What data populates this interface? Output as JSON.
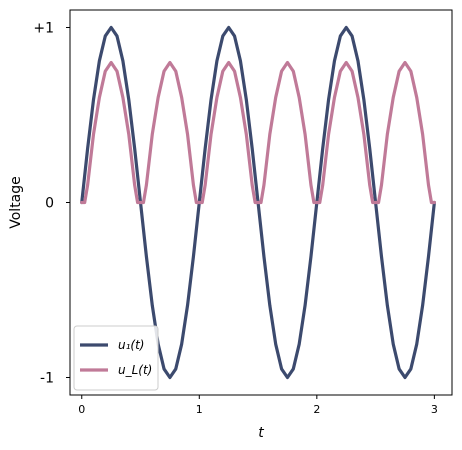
{
  "chart_data": {
    "type": "line",
    "xlabel": "t",
    "ylabel": "Voltage",
    "xlim": [
      -0.1,
      3.15
    ],
    "ylim": [
      -1.1,
      1.1
    ],
    "x_ticks": [
      {
        "value": 0,
        "label": "0"
      },
      {
        "value": 1,
        "label": "1"
      },
      {
        "value": 2,
        "label": "2"
      },
      {
        "value": 3,
        "label": "3"
      }
    ],
    "y_ticks": [
      {
        "value": 1,
        "label": "+1"
      },
      {
        "value": 0,
        "label": "0"
      },
      {
        "value": -1,
        "label": "-1"
      }
    ],
    "grid": false,
    "legend_position": "lower-left",
    "series": [
      {
        "name": "u1(t)",
        "legend_label": "u₁(t)",
        "color": "#3c4a6e",
        "x": [
          0,
          0.05,
          0.1,
          0.15,
          0.2,
          0.25,
          0.3,
          0.35,
          0.4,
          0.45,
          0.5,
          0.55,
          0.6,
          0.65,
          0.7,
          0.75,
          0.8,
          0.85,
          0.9,
          0.95,
          1.0,
          1.05,
          1.1,
          1.15,
          1.2,
          1.25,
          1.3,
          1.35,
          1.4,
          1.45,
          1.5,
          1.55,
          1.6,
          1.65,
          1.7,
          1.75,
          1.8,
          1.85,
          1.9,
          1.95,
          2.0,
          2.05,
          2.1,
          2.15,
          2.2,
          2.25,
          2.3,
          2.35,
          2.4,
          2.45,
          2.5,
          2.55,
          2.6,
          2.65,
          2.7,
          2.75,
          2.8,
          2.85,
          2.9,
          2.95,
          3.0
        ],
        "y": [
          0,
          0.309,
          0.588,
          0.809,
          0.951,
          1.0,
          0.951,
          0.809,
          0.588,
          0.309,
          0,
          -0.309,
          -0.588,
          -0.809,
          -0.951,
          -1.0,
          -0.951,
          -0.809,
          -0.588,
          -0.309,
          0,
          0.309,
          0.588,
          0.809,
          0.951,
          1.0,
          0.951,
          0.809,
          0.588,
          0.309,
          0,
          -0.309,
          -0.588,
          -0.809,
          -0.951,
          -1.0,
          -0.951,
          -0.809,
          -0.588,
          -0.309,
          0,
          0.309,
          0.588,
          0.809,
          0.951,
          1.0,
          0.951,
          0.809,
          0.588,
          0.309,
          0,
          -0.309,
          -0.588,
          -0.809,
          -0.951,
          -1.0,
          -0.951,
          -0.809,
          -0.588,
          -0.309,
          0
        ]
      },
      {
        "name": "uL(t)",
        "legend_label": "u_L(t)",
        "color": "#c07a98",
        "x": [
          0,
          0.025,
          0.05,
          0.1,
          0.15,
          0.2,
          0.25,
          0.3,
          0.35,
          0.4,
          0.45,
          0.475,
          0.5,
          0.525,
          0.55,
          0.6,
          0.65,
          0.7,
          0.75,
          0.8,
          0.85,
          0.9,
          0.95,
          0.975,
          1.0,
          1.025,
          1.05,
          1.1,
          1.15,
          1.2,
          1.25,
          1.3,
          1.35,
          1.4,
          1.45,
          1.475,
          1.5,
          1.525,
          1.55,
          1.6,
          1.65,
          1.7,
          1.75,
          1.8,
          1.85,
          1.9,
          1.95,
          1.975,
          2.0,
          2.025,
          2.05,
          2.1,
          2.15,
          2.2,
          2.25,
          2.3,
          2.35,
          2.4,
          2.45,
          2.475,
          2.5,
          2.525,
          2.55,
          2.6,
          2.65,
          2.7,
          2.75,
          2.8,
          2.85,
          2.9,
          2.95,
          2.975,
          3.0
        ],
        "y": [
          0,
          0,
          0.1,
          0.39,
          0.6,
          0.75,
          0.8,
          0.75,
          0.6,
          0.39,
          0.1,
          0,
          0,
          0,
          0.1,
          0.39,
          0.6,
          0.75,
          0.8,
          0.75,
          0.6,
          0.39,
          0.1,
          0,
          0,
          0,
          0.1,
          0.39,
          0.6,
          0.75,
          0.8,
          0.75,
          0.6,
          0.39,
          0.1,
          0,
          0,
          0,
          0.1,
          0.39,
          0.6,
          0.75,
          0.8,
          0.75,
          0.6,
          0.39,
          0.1,
          0,
          0,
          0,
          0.1,
          0.39,
          0.6,
          0.75,
          0.8,
          0.75,
          0.6,
          0.39,
          0.1,
          0,
          0,
          0,
          0.1,
          0.39,
          0.6,
          0.75,
          0.8,
          0.75,
          0.6,
          0.39,
          0.1,
          0,
          0
        ]
      }
    ]
  }
}
